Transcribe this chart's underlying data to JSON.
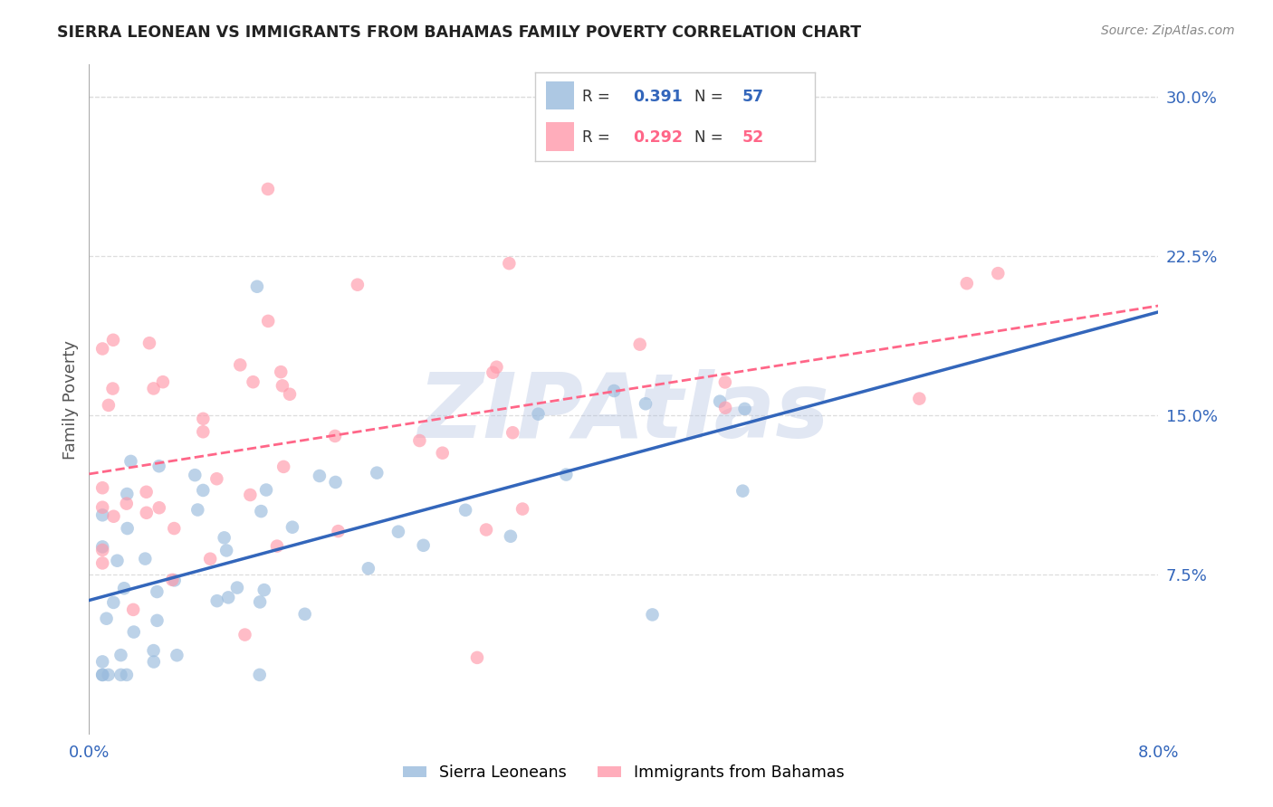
{
  "title": "SIERRA LEONEAN VS IMMIGRANTS FROM BAHAMAS FAMILY POVERTY CORRELATION CHART",
  "source": "Source: ZipAtlas.com",
  "ylabel": "Family Poverty",
  "xlim": [
    0.0,
    0.08
  ],
  "ylim": [
    0.0,
    0.315
  ],
  "yticks": [
    0.075,
    0.15,
    0.225,
    0.3
  ],
  "ytick_labels": [
    "7.5%",
    "15.0%",
    "22.5%",
    "30.0%"
  ],
  "legend_r1": "0.391",
  "legend_n1": "57",
  "legend_r2": "0.292",
  "legend_n2": "52",
  "blue_color": "#99BBDD",
  "pink_color": "#FF99AA",
  "line_blue": "#3366BB",
  "line_pink": "#FF6688",
  "watermark": "ZIPAtlas",
  "watermark_color": "#AABBDD",
  "background_color": "#FFFFFF",
  "grid_color": "#DDDDDD",
  "tick_color": "#3366BB",
  "title_color": "#222222",
  "source_color": "#888888"
}
